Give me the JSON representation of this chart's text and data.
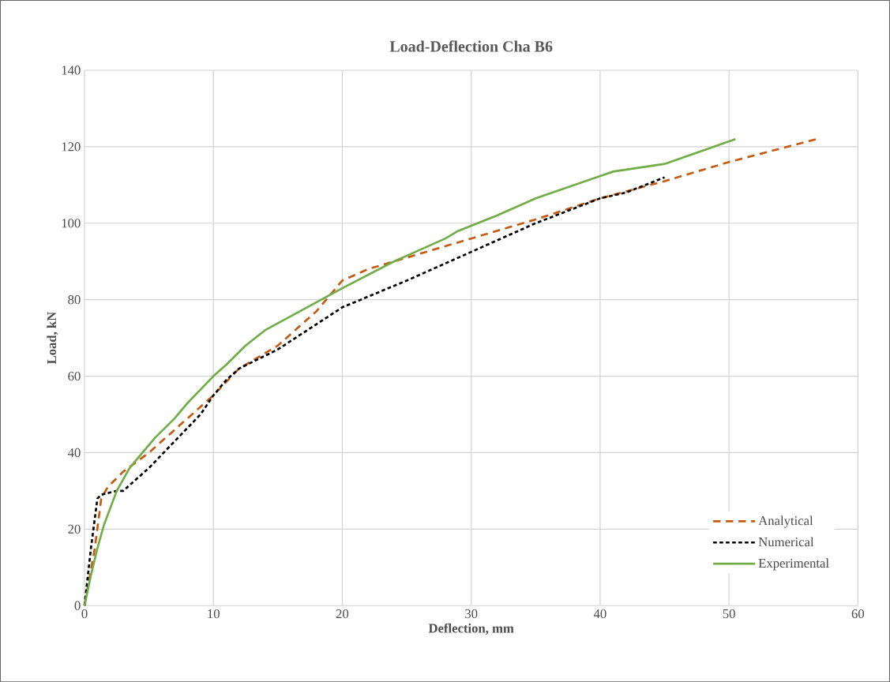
{
  "chart_data": {
    "type": "line",
    "title": "Load-Deflection Cha B6",
    "xlabel": "Deflection, mm",
    "ylabel": "Load, kN",
    "xlim": [
      0,
      60
    ],
    "xticks": [
      0,
      10,
      20,
      30,
      40,
      50,
      60
    ],
    "ylim": [
      0,
      140
    ],
    "yticks": [
      0,
      20,
      40,
      60,
      80,
      100,
      120,
      140
    ],
    "grid": true,
    "legend": "bottom right",
    "series": [
      {
        "name": "Analytical",
        "color": "#c55a11",
        "line_style": "dashed",
        "x": [
          0,
          0.8,
          1.3,
          1.8,
          3,
          5,
          7,
          10,
          12,
          15,
          18,
          20,
          22,
          25,
          30,
          35,
          40,
          45,
          50,
          56.8
        ],
        "values": [
          0,
          15,
          28,
          31,
          35,
          40,
          46,
          55,
          62,
          68,
          77,
          85,
          88,
          91,
          96,
          101,
          106.5,
          111,
          116,
          122
        ]
      },
      {
        "name": "Numerical",
        "color": "#000000",
        "line_style": "dotted",
        "x": [
          0,
          0.5,
          1,
          1.3,
          2.5,
          3,
          5,
          7,
          9,
          10,
          11,
          12,
          15,
          20,
          25,
          30,
          35,
          40,
          42,
          45
        ],
        "values": [
          0,
          15,
          28,
          29,
          30,
          30,
          36,
          43,
          50,
          55,
          59,
          62,
          67,
          78,
          85,
          92.5,
          100,
          106.5,
          108,
          112
        ]
      },
      {
        "name": "Experimental",
        "color": "#70ad47",
        "line_style": "solid",
        "x": [
          0,
          0.5,
          1,
          1.5,
          2.5,
          3.5,
          4.5,
          5.5,
          7,
          8,
          10,
          11,
          12.5,
          14,
          17,
          20,
          24,
          28,
          29,
          32,
          35,
          41,
          45,
          50.5
        ],
        "values": [
          0,
          8,
          15,
          21,
          30,
          36,
          40,
          44,
          49,
          53,
          60,
          63,
          68,
          72,
          77.5,
          83,
          90,
          96,
          98,
          102,
          106.5,
          113.5,
          115.5,
          122
        ]
      }
    ]
  }
}
